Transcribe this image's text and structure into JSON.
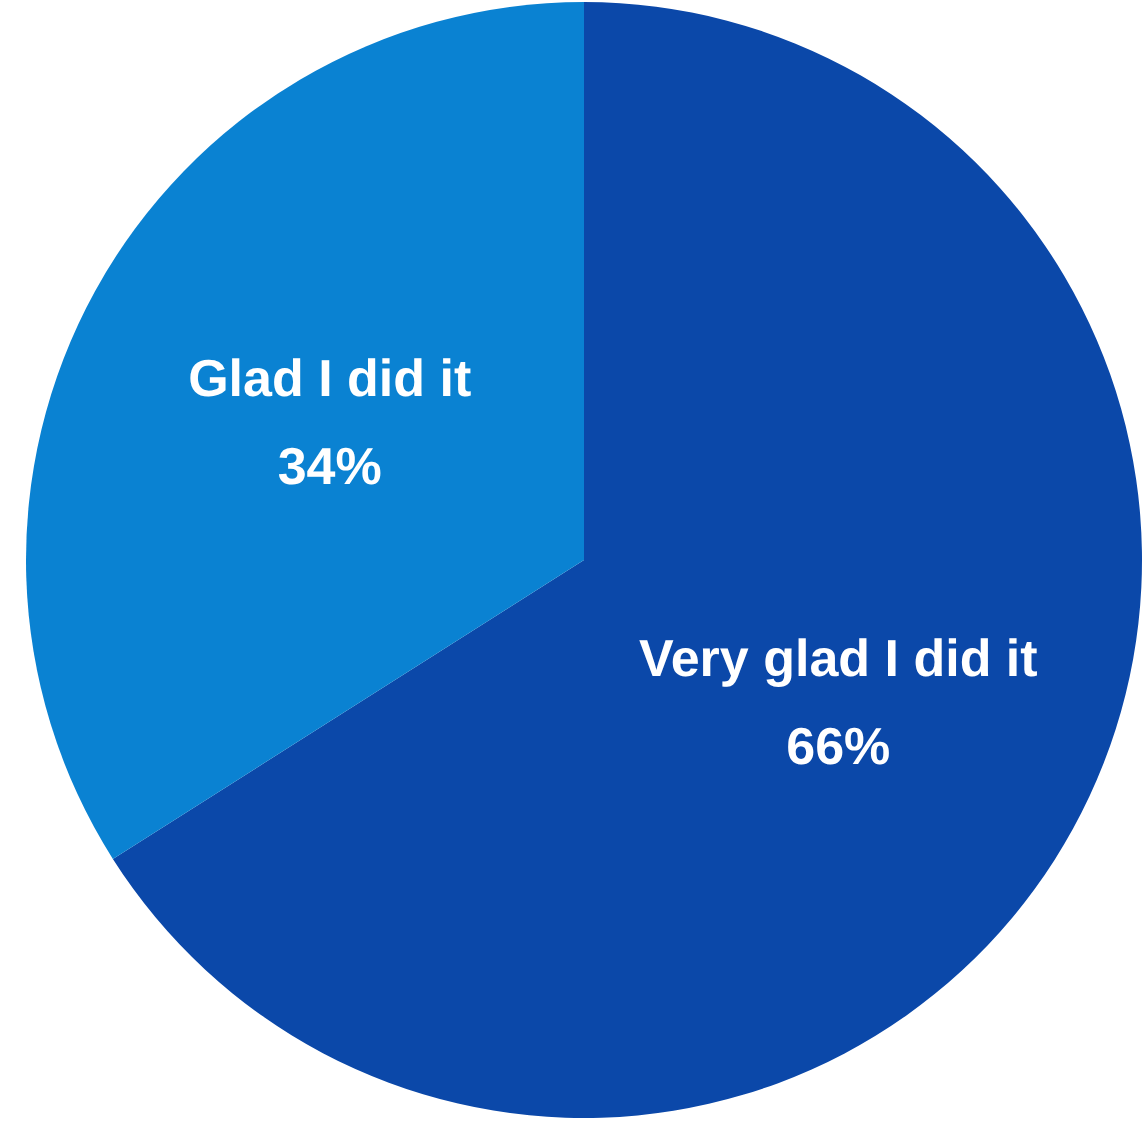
{
  "chart_data": {
    "type": "pie",
    "categories": [
      "Very glad I did it",
      "Glad I did it"
    ],
    "values": [
      66,
      34
    ],
    "colors": [
      "#0b48a9",
      "#0a82d2"
    ],
    "value_labels": [
      "66%",
      "34%"
    ]
  }
}
